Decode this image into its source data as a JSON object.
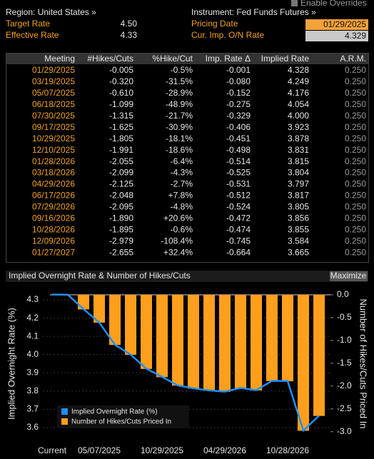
{
  "header": {
    "enable_overrides": "Enable Overrides",
    "region": "Region: United States »",
    "instrument": "Instrument: Fed Funds Futures »",
    "fields": [
      {
        "label": "Target Rate",
        "value": "4.50"
      },
      {
        "label": "Effective Rate",
        "value": "4.33"
      },
      {
        "label": "Pricing Date",
        "value": "01/29/2025"
      },
      {
        "label": "Cur. Imp. O/N Rate",
        "value": "4.329"
      }
    ]
  },
  "table": {
    "columns": [
      "Meeting",
      "#Hikes/Cuts",
      "%Hike/Cut",
      "Imp. Rate Δ",
      "Implied Rate",
      "A.R.M."
    ],
    "rows": [
      [
        "01/29/2025",
        "-0.005",
        "-0.5%",
        "-0.001",
        "4.328",
        "0.250"
      ],
      [
        "03/19/2025",
        "-0.320",
        "-31.5%",
        "-0.080",
        "4.249",
        "0.250"
      ],
      [
        "05/07/2025",
        "-0.610",
        "-28.9%",
        "-0.152",
        "4.176",
        "0.250"
      ],
      [
        "06/18/2025",
        "-1.099",
        "-48.9%",
        "-0.275",
        "4.054",
        "0.250"
      ],
      [
        "07/30/2025",
        "-1.315",
        "-21.7%",
        "-0.329",
        "4.000",
        "0.250"
      ],
      [
        "09/17/2025",
        "-1.625",
        "-30.9%",
        "-0.406",
        "3.923",
        "0.250"
      ],
      [
        "10/29/2025",
        "-1.805",
        "-18.1%",
        "-0.451",
        "3.878",
        "0.250"
      ],
      [
        "12/10/2025",
        "-1.991",
        "-18.6%",
        "-0.498",
        "3.831",
        "0.250"
      ],
      [
        "01/28/2026",
        "-2.055",
        "-6.4%",
        "-0.514",
        "3.815",
        "0.250"
      ],
      [
        "03/18/2026",
        "-2.099",
        "-4.3%",
        "-0.525",
        "3.804",
        "0.250"
      ],
      [
        "04/29/2026",
        "-2.125",
        "-2.7%",
        "-0.531",
        "3.797",
        "0.250"
      ],
      [
        "06/17/2026",
        "-2.048",
        "+7.8%",
        "-0.512",
        "3.817",
        "0.250"
      ],
      [
        "07/29/2026",
        "-2.095",
        "-4.8%",
        "-0.524",
        "3.805",
        "0.250"
      ],
      [
        "09/16/2026",
        "-1.890",
        "+20.6%",
        "-0.472",
        "3.856",
        "0.250"
      ],
      [
        "10/28/2026",
        "-1.895",
        "-0.6%",
        "-0.474",
        "3.855",
        "0.250"
      ],
      [
        "12/09/2026",
        "-2.979",
        "-108.4%",
        "-0.745",
        "3.584",
        "0.250"
      ],
      [
        "01/27/2027",
        "-2.655",
        "+32.4%",
        "-0.664",
        "3.665",
        "0.250"
      ]
    ]
  },
  "chart_data": {
    "type": "combo",
    "title": "Implied Overnight Rate & Number of Hikes/Cuts",
    "button": "Maximize",
    "ylabel": "Implied Overnight Rate (%)",
    "y2label": "Number of Hikes/Cuts Priced In",
    "categories": [
      "Current",
      null,
      null,
      "05/07/2025",
      null,
      null,
      null,
      "10/29/2025",
      null,
      null,
      null,
      "04/29/2026",
      null,
      null,
      null,
      "10/28/2026",
      null,
      null
    ],
    "ylim": [
      3.51,
      4.39
    ],
    "yticks": [
      3.6,
      3.7,
      3.8,
      3.9,
      {
        "value": 4,
        "label": "4.0"
      },
      4.1,
      4.2,
      4.3
    ],
    "y2lim": [
      -3.27,
      0.25
    ],
    "y2ticks": [
      {
        "value": 0,
        "label": "0.0"
      },
      -0.5,
      {
        "value": -1,
        "label": "-1.0"
      },
      -1.5,
      {
        "value": -2,
        "label": "-2.0"
      },
      -2.5,
      {
        "value": -3,
        "label": "-3.0"
      }
    ],
    "grid": true,
    "legend": "lower left",
    "series": [
      {
        "name": "Implied Overnight Rate (%)",
        "type": "line",
        "color": "#1f8fff",
        "values": [
          4.329,
          4.328,
          4.249,
          4.176,
          4.054,
          4.0,
          3.923,
          3.878,
          3.831,
          3.815,
          3.804,
          3.797,
          3.817,
          3.805,
          3.856,
          3.855,
          3.584,
          3.665
        ]
      },
      {
        "name": "Number of Hikes/Cuts Priced In",
        "type": "bar",
        "axis": "y2",
        "color": "#ff9f1c",
        "values": [
          null,
          -0.005,
          -0.32,
          -0.61,
          -1.099,
          -1.315,
          -1.625,
          -1.805,
          -1.991,
          -2.055,
          -2.099,
          -2.125,
          -2.048,
          -2.095,
          -1.89,
          -1.895,
          -2.979,
          -2.655
        ]
      }
    ]
  }
}
